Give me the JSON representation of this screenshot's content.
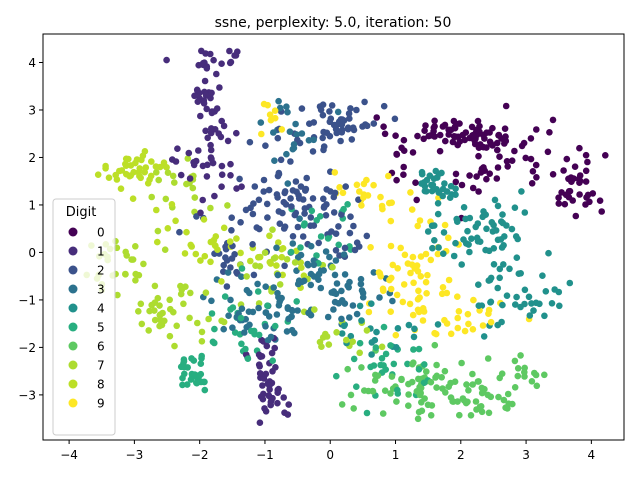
{
  "chart_data": {
    "type": "scatter",
    "title": "ssne, perplexity: 5.0, iteration: 50",
    "xlabel": "",
    "ylabel": "",
    "xlim": [
      -4.4,
      4.5
    ],
    "ylim": [
      -3.95,
      4.6
    ],
    "xticks": [
      -4,
      -3,
      -2,
      -1,
      0,
      1,
      2,
      3,
      4
    ],
    "yticks": [
      -3,
      -2,
      -1,
      0,
      1,
      2,
      3,
      4
    ],
    "grid": false,
    "legend": {
      "title": "Digit",
      "placement": "left"
    },
    "colors": {
      "0": "#440154",
      "1": "#472d7b",
      "2": "#3b528b",
      "3": "#2c728e",
      "4": "#21918c",
      "5": "#28ae80",
      "6": "#5ec962",
      "7": "#addc30",
      "8": "#bcdf27",
      "9": "#fde725"
    },
    "series": [
      {
        "name": "0",
        "clusters": [
          {
            "cx": 1.8,
            "cy": 2.55,
            "sx": 0.45,
            "sy": 0.15,
            "n": 55
          },
          {
            "cx": 2.7,
            "cy": 2.2,
            "sx": 0.35,
            "sy": 0.35,
            "n": 40
          },
          {
            "cx": 3.7,
            "cy": 1.5,
            "sx": 0.25,
            "sy": 0.35,
            "n": 40
          },
          {
            "cx": 1.2,
            "cy": 1.9,
            "sx": 0.15,
            "sy": 0.3,
            "n": 12
          },
          {
            "cx": 2.3,
            "cy": 1.5,
            "sx": 0.25,
            "sy": 0.3,
            "n": 15
          }
        ]
      },
      {
        "name": "1",
        "clusters": [
          {
            "cx": -1.8,
            "cy": 4.1,
            "sx": 0.25,
            "sy": 0.12,
            "n": 18
          },
          {
            "cx": -1.9,
            "cy": 3.3,
            "sx": 0.12,
            "sy": 0.35,
            "n": 22
          },
          {
            "cx": -1.8,
            "cy": 1.9,
            "sx": 0.25,
            "sy": 0.5,
            "n": 40
          },
          {
            "cx": -0.9,
            "cy": -2.9,
            "sx": 0.12,
            "sy": 0.3,
            "n": 35
          },
          {
            "cx": -1.0,
            "cy": -2.1,
            "sx": 0.12,
            "sy": 0.15,
            "n": 12
          }
        ]
      },
      {
        "name": "2",
        "clusters": [
          {
            "cx": 0.1,
            "cy": 2.7,
            "sx": 0.35,
            "sy": 0.35,
            "n": 55
          },
          {
            "cx": -0.8,
            "cy": 1.2,
            "sx": 0.4,
            "sy": 0.4,
            "n": 45
          },
          {
            "cx": 0.0,
            "cy": 0.6,
            "sx": 0.45,
            "sy": 0.5,
            "n": 45
          },
          {
            "cx": -1.5,
            "cy": 0.0,
            "sx": 0.3,
            "sy": 0.4,
            "n": 25
          }
        ]
      },
      {
        "name": "3",
        "clusters": [
          {
            "cx": -1.0,
            "cy": -1.2,
            "sx": 0.4,
            "sy": 0.35,
            "n": 55
          },
          {
            "cx": -0.2,
            "cy": -0.5,
            "sx": 0.4,
            "sy": 0.4,
            "n": 45
          },
          {
            "cx": -0.6,
            "cy": 2.6,
            "sx": 0.25,
            "sy": 0.35,
            "n": 20
          },
          {
            "cx": 0.4,
            "cy": -0.9,
            "sx": 0.3,
            "sy": 0.25,
            "n": 20
          }
        ]
      },
      {
        "name": "4",
        "clusters": [
          {
            "cx": 1.6,
            "cy": 1.45,
            "sx": 0.15,
            "sy": 0.15,
            "n": 28
          },
          {
            "cx": 2.3,
            "cy": 0.4,
            "sx": 0.45,
            "sy": 0.35,
            "n": 60
          },
          {
            "cx": 2.9,
            "cy": -0.9,
            "sx": 0.35,
            "sy": 0.35,
            "n": 40
          },
          {
            "cx": 0.8,
            "cy": -1.6,
            "sx": 0.3,
            "sy": 0.3,
            "n": 20
          }
        ]
      },
      {
        "name": "5",
        "clusters": [
          {
            "cx": -2.1,
            "cy": -2.55,
            "sx": 0.15,
            "sy": 0.18,
            "n": 32
          },
          {
            "cx": -1.3,
            "cy": -1.5,
            "sx": 0.35,
            "sy": 0.45,
            "n": 30
          },
          {
            "cx": 0.9,
            "cy": -2.4,
            "sx": 0.35,
            "sy": 0.35,
            "n": 30
          },
          {
            "cx": 0.0,
            "cy": 0.4,
            "sx": 0.4,
            "sy": 0.4,
            "n": 20
          }
        ]
      },
      {
        "name": "6",
        "clusters": [
          {
            "cx": 1.4,
            "cy": -2.8,
            "sx": 0.55,
            "sy": 0.3,
            "n": 70
          },
          {
            "cx": 2.2,
            "cy": -3.2,
            "sx": 0.35,
            "sy": 0.2,
            "n": 30
          },
          {
            "cx": 3.0,
            "cy": -2.5,
            "sx": 0.2,
            "sy": 0.2,
            "n": 14
          }
        ]
      },
      {
        "name": "7",
        "clusters": [
          {
            "cx": -2.5,
            "cy": -1.3,
            "sx": 0.3,
            "sy": 0.25,
            "n": 40
          },
          {
            "cx": -3.3,
            "cy": -0.3,
            "sx": 0.3,
            "sy": 0.4,
            "n": 30
          },
          {
            "cx": -2.2,
            "cy": 1.2,
            "sx": 0.3,
            "sy": 0.4,
            "n": 20
          },
          {
            "cx": -0.6,
            "cy": -0.3,
            "sx": 0.35,
            "sy": 0.35,
            "n": 20
          },
          {
            "cx": 0.1,
            "cy": -1.8,
            "sx": 0.35,
            "sy": 0.15,
            "n": 15
          }
        ]
      },
      {
        "name": "8",
        "clusters": [
          {
            "cx": -3.0,
            "cy": 1.7,
            "sx": 0.25,
            "sy": 0.25,
            "n": 40
          },
          {
            "cx": -2.0,
            "cy": 0.3,
            "sx": 0.3,
            "sy": 0.35,
            "n": 25
          },
          {
            "cx": -0.8,
            "cy": -0.1,
            "sx": 0.35,
            "sy": 0.3,
            "n": 20
          }
        ]
      },
      {
        "name": "9",
        "clusters": [
          {
            "cx": 1.3,
            "cy": -0.3,
            "sx": 0.35,
            "sy": 0.6,
            "n": 60
          },
          {
            "cx": 2.0,
            "cy": -1.4,
            "sx": 0.4,
            "sy": 0.2,
            "n": 25
          },
          {
            "cx": 0.5,
            "cy": 1.2,
            "sx": 0.3,
            "sy": 0.3,
            "n": 20
          },
          {
            "cx": -0.8,
            "cy": 2.9,
            "sx": 0.15,
            "sy": 0.2,
            "n": 8
          }
        ]
      }
    ]
  }
}
